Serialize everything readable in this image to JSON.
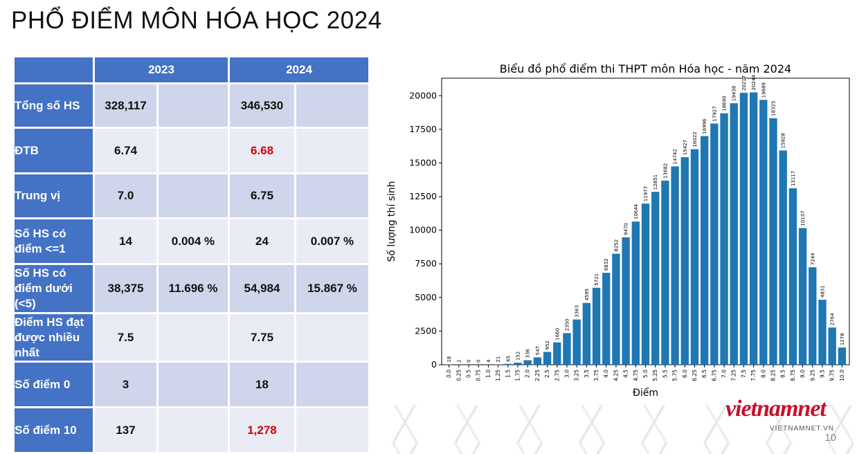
{
  "slide": {
    "title": "PHỔ ĐIỂM MÔN HÓA HỌC 2024",
    "page_number": "10"
  },
  "logo": {
    "text": "vietnamnet",
    "subtext": "VIETNAMNET.VN"
  },
  "table": {
    "headers": [
      "",
      "2023",
      "2024"
    ],
    "rows": [
      {
        "label": "Tổng số HS",
        "v2023": "328,117",
        "p2023": "",
        "v2024": "346,530",
        "p2024": ""
      },
      {
        "label": "ĐTB",
        "v2023": "6.74",
        "p2023": "",
        "v2024": "6.68",
        "p2024": ""
      },
      {
        "label": "Trung vị",
        "v2023": "7.0",
        "p2023": "",
        "v2024": "6.75",
        "p2024": ""
      },
      {
        "label": "Số HS có điểm <=1",
        "v2023": "14",
        "p2023": "0.004 %",
        "v2024": "24",
        "p2024": "0.007 %"
      },
      {
        "label": "Số HS có điểm dưới (<5)",
        "v2023": "38,375",
        "p2023": "11.696 %",
        "v2024": "54,984",
        "p2024": "15.867 %"
      },
      {
        "label": "Điểm HS đạt được nhiều nhất",
        "v2023": "7.5",
        "p2023": "",
        "v2024": "7.75",
        "p2024": ""
      },
      {
        "label": "Số điểm 0",
        "v2023": "3",
        "p2023": "",
        "v2024": "18",
        "p2024": ""
      },
      {
        "label": "Số điểm 10",
        "v2023": "137",
        "p2023": "",
        "v2024": "1,278",
        "p2024": ""
      }
    ],
    "highlight_color": "#d40000"
  },
  "chart_data": {
    "type": "bar",
    "title": "Biểu đồ phổ điểm thi THPT môn Hóa học - năm 2024",
    "xlabel": "Điểm",
    "ylabel": "Số lượng thí sinh",
    "categories": [
      "0.0",
      "0.25",
      "0.5",
      "0.75",
      "1.0",
      "1.25",
      "1.5",
      "1.75",
      "2.0",
      "2.25",
      "2.5",
      "2.75",
      "3.0",
      "3.25",
      "3.5",
      "3.75",
      "4.0",
      "4.25",
      "4.5",
      "4.75",
      "5.0",
      "5.25",
      "5.5",
      "5.75",
      "6.0",
      "6.25",
      "6.5",
      "6.75",
      "7.0",
      "7.25",
      "7.5",
      "7.75",
      "8.0",
      "8.25",
      "8.5",
      "8.75",
      "9.0",
      "9.25",
      "9.5",
      "9.75",
      "10.0"
    ],
    "values": [
      18,
      2,
      0,
      0,
      4,
      21,
      65,
      152,
      336,
      547,
      952,
      1660,
      2350,
      3363,
      4595,
      5721,
      6832,
      8252,
      9470,
      10644,
      11977,
      12851,
      13682,
      14742,
      15427,
      16022,
      16996,
      17927,
      18690,
      19438,
      20217,
      20244,
      19689,
      18325,
      15928,
      13117,
      10157,
      7244,
      4831,
      2764,
      1278
    ],
    "yticks": [
      0,
      2500,
      5000,
      7500,
      10000,
      12500,
      15000,
      17500,
      20000
    ],
    "ylim": [
      0,
      21300
    ],
    "bar_color": "#1f77b4",
    "grid": false
  }
}
